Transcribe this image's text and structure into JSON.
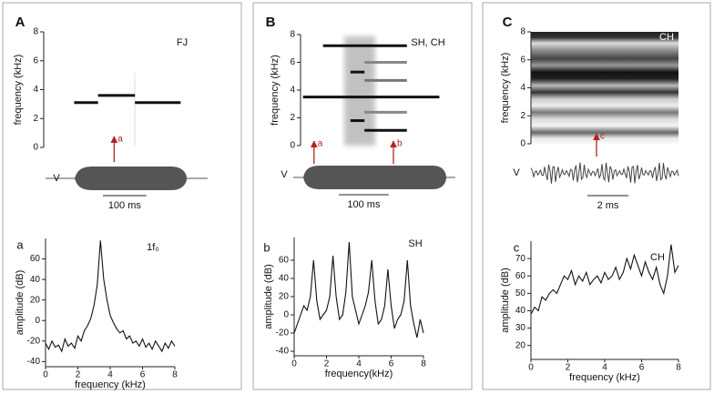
{
  "chart_data": [
    {
      "type": "spectrogram",
      "panel": "A",
      "label": "FJ",
      "label_color": "#111111",
      "ylabel": "frequency (kHz)",
      "ylim": [
        0,
        8
      ],
      "yticks": [
        0,
        2,
        4,
        6,
        8
      ],
      "xlim": [
        0,
        350
      ],
      "tracks": [
        {
          "freq": 3.1,
          "t": [
            70,
            125
          ],
          "color": "#111111"
        },
        {
          "freq": 3.6,
          "t": [
            125,
            210
          ],
          "color": "#111111"
        },
        {
          "freq": 3.1,
          "t": [
            210,
            315
          ],
          "color": "#111111"
        }
      ],
      "annotations": [
        {
          "label": "a",
          "t": 162
        }
      ],
      "waveform_label": "V",
      "scale_bar": {
        "value": 100,
        "label": "100 ms"
      }
    },
    {
      "type": "spectrogram",
      "panel": "B",
      "label": "SH, CH",
      "label_color": "#111111",
      "ylabel": "frequency (kHz)",
      "ylim": [
        0,
        8
      ],
      "yticks": [
        0,
        2,
        4,
        6,
        8
      ],
      "xlim": [
        0,
        310
      ],
      "tracks": [
        {
          "freq": 3.5,
          "t": [
            5,
            278
          ],
          "color": "#111111"
        },
        {
          "freq": 7.2,
          "t": [
            45,
            213
          ],
          "color": "#111111"
        },
        {
          "freq": 6.0,
          "t": [
            128,
            213
          ],
          "color": "#888888"
        },
        {
          "freq": 5.3,
          "t": [
            100,
            128
          ],
          "color": "#111111"
        },
        {
          "freq": 4.7,
          "t": [
            128,
            213
          ],
          "color": "#777777"
        },
        {
          "freq": 2.4,
          "t": [
            128,
            213
          ],
          "color": "#888888"
        },
        {
          "freq": 1.8,
          "t": [
            100,
            128
          ],
          "color": "#111111"
        },
        {
          "freq": 1.1,
          "t": [
            128,
            213
          ],
          "color": "#111111"
        }
      ],
      "annotations": [
        {
          "label": "a",
          "t": 27
        },
        {
          "label": "b",
          "t": 186
        }
      ],
      "waveform_label": "V",
      "scale_bar": {
        "value": 100,
        "label": "100 ms"
      }
    },
    {
      "type": "spectrogram",
      "panel": "C",
      "label": "CH",
      "label_color": "#ffffff",
      "ylabel": "frequency (kHz)",
      "ylim": [
        0,
        8
      ],
      "yticks": [
        0,
        2,
        4,
        6,
        8
      ],
      "xlim": [
        0,
        7.2
      ],
      "tracks": [],
      "annotations": [
        {
          "label": "c",
          "t": 3.2
        }
      ],
      "waveform_label": "V",
      "scale_bar": {
        "value": 2,
        "label": "2 ms"
      }
    },
    {
      "type": "line",
      "panel": "a",
      "legend": "1f₀",
      "xlabel": "frequency (kHz)",
      "ylabel": "amplitude (dB)",
      "color": "#111111",
      "xlim": [
        0,
        8
      ],
      "xticks": [
        0,
        2,
        4,
        6,
        8
      ],
      "ylim": [
        -45,
        80
      ],
      "yticks": [
        -40,
        -20,
        0,
        20,
        40,
        60
      ],
      "x": [
        0,
        0.2,
        0.4,
        0.6,
        0.8,
        1,
        1.2,
        1.4,
        1.6,
        1.8,
        2,
        2.2,
        2.4,
        2.6,
        2.8,
        3,
        3.2,
        3.4,
        3.6,
        3.8,
        4,
        4.2,
        4.4,
        4.6,
        4.8,
        5,
        5.2,
        5.4,
        5.6,
        5.8,
        6,
        6.2,
        6.4,
        6.6,
        6.8,
        7,
        7.2,
        7.4,
        7.6,
        7.8,
        8
      ],
      "values": [
        -22,
        -28,
        -20,
        -26,
        -24,
        -30,
        -18,
        -25,
        -22,
        -27,
        -15,
        -20,
        -10,
        -5,
        2,
        15,
        35,
        78,
        40,
        20,
        5,
        -2,
        -8,
        -12,
        -10,
        -18,
        -15,
        -22,
        -20,
        -25,
        -18,
        -26,
        -22,
        -28,
        -20,
        -25,
        -30,
        -22,
        -27,
        -20,
        -25
      ]
    },
    {
      "type": "line",
      "panel": "b",
      "legend": "SH",
      "xlabel": "frequency(kHz)",
      "ylabel": "amplitude (dB)",
      "color": "#111111",
      "xlim": [
        0,
        8
      ],
      "xticks": [
        0,
        2,
        4,
        6,
        8
      ],
      "ylim": [
        -45,
        85
      ],
      "yticks": [
        -40,
        -20,
        0,
        20,
        40,
        60
      ],
      "x": [
        0,
        0.2,
        0.4,
        0.6,
        0.8,
        1,
        1.2,
        1.4,
        1.6,
        1.8,
        2,
        2.2,
        2.4,
        2.6,
        2.8,
        3,
        3.2,
        3.4,
        3.6,
        3.8,
        4,
        4.2,
        4.4,
        4.6,
        4.8,
        5,
        5.2,
        5.4,
        5.6,
        5.8,
        6,
        6.2,
        6.4,
        6.6,
        6.8,
        7,
        7.2,
        7.4,
        7.6,
        7.8,
        8
      ],
      "values": [
        -20,
        -10,
        0,
        10,
        5,
        20,
        60,
        15,
        -5,
        0,
        5,
        20,
        65,
        20,
        -5,
        0,
        25,
        80,
        20,
        5,
        -10,
        0,
        10,
        25,
        60,
        15,
        -10,
        -5,
        10,
        50,
        10,
        -15,
        -5,
        0,
        15,
        60,
        10,
        -10,
        -25,
        -5,
        -20
      ]
    },
    {
      "type": "line",
      "panel": "c",
      "legend": "CH",
      "xlabel": "frequency (kHz)",
      "ylabel": "amplitude (dB)",
      "color": "#111111",
      "xlim": [
        0,
        8
      ],
      "xticks": [
        0,
        2,
        4,
        6,
        8
      ],
      "ylim": [
        12,
        80
      ],
      "yticks": [
        20,
        30,
        40,
        50,
        60,
        70
      ],
      "x": [
        0,
        0.2,
        0.4,
        0.6,
        0.8,
        1,
        1.2,
        1.4,
        1.6,
        1.8,
        2,
        2.2,
        2.4,
        2.6,
        2.8,
        3,
        3.2,
        3.4,
        3.6,
        3.8,
        4,
        4.2,
        4.4,
        4.6,
        4.8,
        5,
        5.2,
        5.4,
        5.6,
        5.8,
        6,
        6.2,
        6.4,
        6.6,
        6.8,
        7,
        7.2,
        7.4,
        7.6,
        7.8,
        8
      ],
      "values": [
        38,
        42,
        40,
        48,
        46,
        50,
        52,
        50,
        55,
        60,
        58,
        63,
        55,
        60,
        57,
        62,
        55,
        58,
        60,
        56,
        62,
        58,
        60,
        65,
        58,
        62,
        70,
        64,
        72,
        66,
        60,
        68,
        62,
        58,
        65,
        55,
        50,
        60,
        78,
        62,
        66
      ]
    }
  ]
}
